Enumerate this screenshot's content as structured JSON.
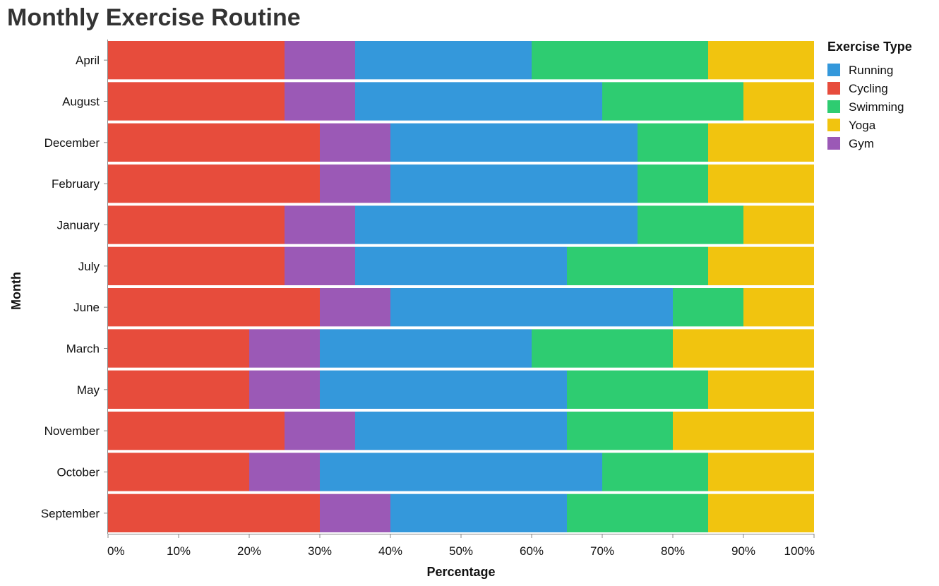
{
  "chart_data": {
    "type": "bar",
    "orientation": "horizontal",
    "stacked": "normalized",
    "title": "Monthly Exercise Routine",
    "xlabel": "Percentage",
    "ylabel": "Month",
    "xlim": [
      0,
      100
    ],
    "x_ticks": [
      "0%",
      "10%",
      "20%",
      "30%",
      "40%",
      "50%",
      "60%",
      "70%",
      "80%",
      "90%",
      "100%"
    ],
    "grid": false,
    "legend_position": "right",
    "legend_title": "Exercise Type",
    "legend": [
      {
        "name": "Running",
        "color": "#3498db"
      },
      {
        "name": "Cycling",
        "color": "#e74c3c"
      },
      {
        "name": "Swimming",
        "color": "#2ecc71"
      },
      {
        "name": "Yoga",
        "color": "#f1c40f"
      },
      {
        "name": "Gym",
        "color": "#9b59b6"
      }
    ],
    "stack_order": [
      "Cycling",
      "Gym",
      "Running",
      "Swimming",
      "Yoga"
    ],
    "categories": [
      "April",
      "August",
      "December",
      "February",
      "January",
      "July",
      "June",
      "March",
      "May",
      "November",
      "October",
      "September"
    ],
    "series": [
      {
        "name": "Cycling",
        "color": "#e74c3c",
        "values": [
          25,
          25,
          30,
          30,
          25,
          25,
          30,
          20,
          20,
          25,
          20,
          30
        ]
      },
      {
        "name": "Gym",
        "color": "#9b59b6",
        "values": [
          10,
          10,
          10,
          10,
          10,
          10,
          10,
          10,
          10,
          10,
          10,
          10
        ]
      },
      {
        "name": "Running",
        "color": "#3498db",
        "values": [
          25,
          35,
          35,
          35,
          40,
          30,
          40,
          30,
          35,
          30,
          40,
          25
        ]
      },
      {
        "name": "Swimming",
        "color": "#2ecc71",
        "values": [
          25,
          20,
          10,
          10,
          15,
          20,
          10,
          20,
          20,
          15,
          15,
          20
        ]
      },
      {
        "name": "Yoga",
        "color": "#f1c40f",
        "values": [
          15,
          10,
          15,
          15,
          10,
          15,
          10,
          20,
          15,
          20,
          15,
          15
        ]
      }
    ]
  }
}
